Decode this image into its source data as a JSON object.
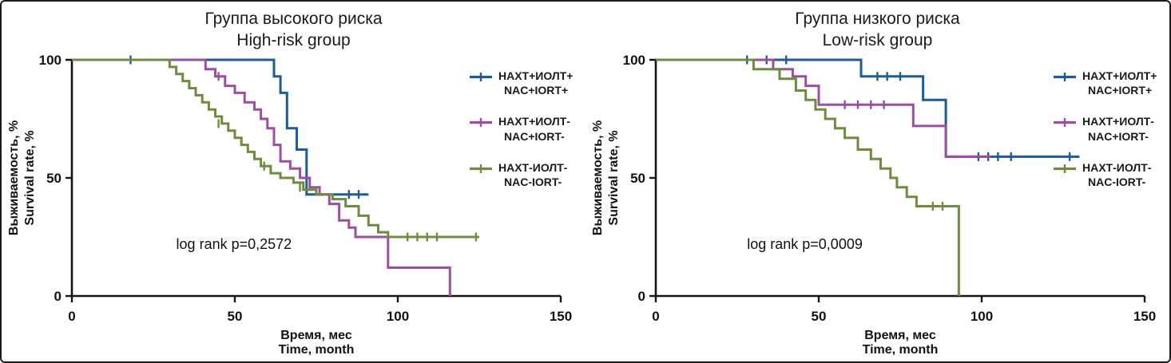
{
  "figure": {
    "panels": [
      {
        "title_ru": "Группа высокого риска",
        "title_en": "High-risk group"
      },
      {
        "title_ru": "Группа низкого риска",
        "title_en": "Low-risk group"
      }
    ]
  },
  "chart_data": [
    {
      "type": "line",
      "subtype": "kaplan-meier-step",
      "title_ru": "Группа высокого риска",
      "title_en": "High-risk group",
      "xlabel_ru": "Время, мес",
      "xlabel_en": "Time, month",
      "ylabel_ru": "Выживаемость, %",
      "ylabel_en": "Survival rate, %",
      "xlim": [
        0,
        150
      ],
      "ylim": [
        0,
        100
      ],
      "xticks": [
        0,
        50,
        100,
        150
      ],
      "yticks": [
        0,
        50,
        100
      ],
      "grid": false,
      "legend_position": "right",
      "annotation": {
        "x": 32,
        "y": 20,
        "text": "log rank p=0,2572"
      },
      "series": [
        {
          "name_ru": "НАХТ+ИОЛТ+",
          "name_en": "NAC+IORT+",
          "color": "#1d5c97",
          "points": [
            [
              0,
              100
            ],
            [
              62,
              93
            ],
            [
              64,
              86
            ],
            [
              66,
              71
            ],
            [
              69,
              62
            ],
            [
              72,
              43
            ]
          ],
          "end_x": 91,
          "censors": [
            [
              18,
              100
            ],
            [
              85,
              43
            ],
            [
              88,
              43
            ]
          ]
        },
        {
          "name_ru": "НАХТ+ИОЛТ-",
          "name_en": "NAC+IORT-",
          "color": "#9b4f9f",
          "points": [
            [
              0,
              100
            ],
            [
              41,
              96
            ],
            [
              44,
              93
            ],
            [
              47,
              89
            ],
            [
              50,
              86
            ],
            [
              53,
              82
            ],
            [
              56,
              79
            ],
            [
              58,
              75
            ],
            [
              60,
              71
            ],
            [
              62,
              64
            ],
            [
              64,
              57
            ],
            [
              67,
              54
            ],
            [
              70,
              50
            ],
            [
              73,
              46
            ],
            [
              76,
              43
            ],
            [
              79,
              39
            ],
            [
              82,
              32
            ],
            [
              85,
              29
            ],
            [
              87,
              25
            ],
            [
              97,
              12
            ],
            [
              116,
              0
            ]
          ],
          "end_x": 116,
          "censors": [
            [
              45,
              93
            ]
          ]
        },
        {
          "name_ru": "НАХТ-ИОЛТ-",
          "name_en": "NAC-IORT-",
          "color": "#6e8c3e",
          "points": [
            [
              0,
              100
            ],
            [
              30,
              97
            ],
            [
              32,
              94
            ],
            [
              34,
              91
            ],
            [
              36,
              88
            ],
            [
              38,
              85
            ],
            [
              40,
              82
            ],
            [
              42,
              79
            ],
            [
              44,
              76
            ],
            [
              46,
              73
            ],
            [
              48,
              70
            ],
            [
              50,
              67
            ],
            [
              52,
              64
            ],
            [
              54,
              61
            ],
            [
              56,
              58
            ],
            [
              58,
              55
            ],
            [
              61,
              52
            ],
            [
              64,
              50
            ],
            [
              68,
              48
            ],
            [
              71,
              45
            ],
            [
              75,
              43
            ],
            [
              80,
              41
            ],
            [
              84,
              38
            ],
            [
              88,
              34
            ],
            [
              91,
              30
            ],
            [
              94,
              27
            ],
            [
              97,
              25
            ]
          ],
          "end_x": 125,
          "censors": [
            [
              45,
              73
            ],
            [
              59,
              55
            ],
            [
              70,
              46
            ],
            [
              103,
              25
            ],
            [
              106,
              25
            ],
            [
              109,
              25
            ],
            [
              112,
              25
            ],
            [
              124,
              25
            ]
          ]
        }
      ]
    },
    {
      "type": "line",
      "subtype": "kaplan-meier-step",
      "title_ru": "Группа низкого риска",
      "title_en": "Low-risk group",
      "xlabel_ru": "Время, мес",
      "xlabel_en": "Time, month",
      "ylabel_ru": "Выживаемость, %",
      "ylabel_en": "Survival rate, %",
      "xlim": [
        0,
        150
      ],
      "ylim": [
        0,
        100
      ],
      "xticks": [
        0,
        50,
        100,
        150
      ],
      "yticks": [
        0,
        50,
        100
      ],
      "grid": false,
      "legend_position": "right",
      "annotation": {
        "x": 28,
        "y": 20,
        "text": "log rank p=0,0009"
      },
      "series": [
        {
          "name_ru": "НАХТ+ИОЛТ+",
          "name_en": "NAC+IORT+",
          "color": "#1d5c97",
          "points": [
            [
              0,
              100
            ],
            [
              63,
              93
            ],
            [
              82,
              83
            ],
            [
              89,
              59
            ]
          ],
          "end_x": 130,
          "censors": [
            [
              28,
              100
            ],
            [
              34,
              100
            ],
            [
              40,
              100
            ],
            [
              68,
              93
            ],
            [
              71,
              93
            ],
            [
              75,
              93
            ],
            [
              99,
              59
            ],
            [
              102,
              59
            ],
            [
              105,
              59
            ],
            [
              109,
              59
            ],
            [
              127,
              59
            ]
          ]
        },
        {
          "name_ru": "НАХТ+ИОЛТ-",
          "name_en": "NAC+IORT-",
          "color": "#9b4f9f",
          "points": [
            [
              0,
              100
            ],
            [
              36,
              96
            ],
            [
              42,
              93
            ],
            [
              46,
              89
            ],
            [
              50,
              81
            ],
            [
              79,
              72
            ],
            [
              89,
              59
            ]
          ],
          "end_x": 103,
          "censors": [
            [
              58,
              81
            ],
            [
              62,
              81
            ],
            [
              66,
              81
            ],
            [
              70,
              81
            ]
          ]
        },
        {
          "name_ru": "НАХТ-ИОЛТ-",
          "name_en": "NAC-IORT-",
          "color": "#6e8c3e",
          "points": [
            [
              0,
              100
            ],
            [
              30,
              96
            ],
            [
              38,
              92
            ],
            [
              43,
              87
            ],
            [
              46,
              83
            ],
            [
              49,
              79
            ],
            [
              52,
              75
            ],
            [
              55,
              71
            ],
            [
              58,
              67
            ],
            [
              62,
              62
            ],
            [
              66,
              58
            ],
            [
              69,
              54
            ],
            [
              72,
              50
            ],
            [
              74,
              46
            ],
            [
              77,
              42
            ],
            [
              80,
              38
            ],
            [
              93,
              0
            ]
          ],
          "end_x": 93,
          "censors": [
            [
              85,
              38
            ],
            [
              88,
              38
            ]
          ]
        }
      ]
    }
  ]
}
